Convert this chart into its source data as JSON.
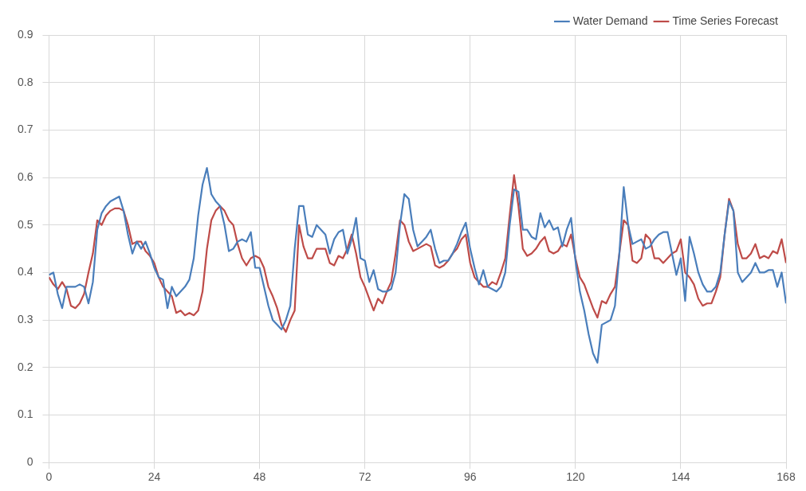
{
  "chart_data": {
    "type": "line",
    "x": [
      0,
      1,
      2,
      3,
      4,
      5,
      6,
      7,
      8,
      9,
      10,
      11,
      12,
      13,
      14,
      15,
      16,
      17,
      18,
      19,
      20,
      21,
      22,
      23,
      24,
      25,
      26,
      27,
      28,
      29,
      30,
      31,
      32,
      33,
      34,
      35,
      36,
      37,
      38,
      39,
      40,
      41,
      42,
      43,
      44,
      45,
      46,
      47,
      48,
      49,
      50,
      51,
      52,
      53,
      54,
      55,
      56,
      57,
      58,
      59,
      60,
      61,
      62,
      63,
      64,
      65,
      66,
      67,
      68,
      69,
      70,
      71,
      72,
      73,
      74,
      75,
      76,
      77,
      78,
      79,
      80,
      81,
      82,
      83,
      84,
      85,
      86,
      87,
      88,
      89,
      90,
      91,
      92,
      93,
      94,
      95,
      96,
      97,
      98,
      99,
      100,
      101,
      102,
      103,
      104,
      105,
      106,
      107,
      108,
      109,
      110,
      111,
      112,
      113,
      114,
      115,
      116,
      117,
      118,
      119,
      120,
      121,
      122,
      123,
      124,
      125,
      126,
      127,
      128,
      129,
      130,
      131,
      132,
      133,
      134,
      135,
      136,
      137,
      138,
      139,
      140,
      141,
      142,
      143,
      144,
      145,
      146,
      147,
      148,
      149,
      150,
      151,
      152,
      153,
      154,
      155,
      156,
      157,
      158,
      159,
      160,
      161,
      162,
      163,
      164,
      165,
      166,
      167,
      168
    ],
    "series": [
      {
        "name": "Water Demand",
        "color": "#4a7ebb",
        "values": [
          0.395,
          0.4,
          0.355,
          0.325,
          0.37,
          0.37,
          0.37,
          0.375,
          0.37,
          0.335,
          0.38,
          0.49,
          0.525,
          0.54,
          0.55,
          0.555,
          0.56,
          0.53,
          0.48,
          0.44,
          0.465,
          0.45,
          0.465,
          0.44,
          0.41,
          0.39,
          0.385,
          0.325,
          0.37,
          0.35,
          0.36,
          0.37,
          0.385,
          0.43,
          0.52,
          0.585,
          0.62,
          0.565,
          0.55,
          0.54,
          0.5,
          0.445,
          0.45,
          0.465,
          0.47,
          0.465,
          0.485,
          0.41,
          0.41,
          0.37,
          0.33,
          0.3,
          0.29,
          0.28,
          0.3,
          0.33,
          0.45,
          0.54,
          0.54,
          0.48,
          0.475,
          0.5,
          0.49,
          0.48,
          0.44,
          0.47,
          0.485,
          0.49,
          0.44,
          0.47,
          0.515,
          0.43,
          0.425,
          0.38,
          0.405,
          0.365,
          0.36,
          0.36,
          0.365,
          0.4,
          0.5,
          0.565,
          0.555,
          0.49,
          0.455,
          0.465,
          0.475,
          0.49,
          0.45,
          0.42,
          0.425,
          0.425,
          0.44,
          0.46,
          0.485,
          0.505,
          0.45,
          0.41,
          0.375,
          0.405,
          0.37,
          0.365,
          0.36,
          0.37,
          0.4,
          0.5,
          0.575,
          0.57,
          0.49,
          0.49,
          0.475,
          0.47,
          0.525,
          0.495,
          0.51,
          0.49,
          0.495,
          0.455,
          0.49,
          0.515,
          0.425,
          0.36,
          0.32,
          0.27,
          0.23,
          0.21,
          0.29,
          0.295,
          0.3,
          0.33,
          0.44,
          0.58,
          0.5,
          0.46,
          0.465,
          0.47,
          0.45,
          0.455,
          0.47,
          0.48,
          0.485,
          0.485,
          0.44,
          0.395,
          0.43,
          0.34,
          0.475,
          0.44,
          0.4,
          0.375,
          0.36,
          0.36,
          0.37,
          0.4,
          0.48,
          0.55,
          0.53,
          0.4,
          0.38,
          0.39,
          0.4,
          0.42,
          0.4,
          0.4,
          0.405,
          0.405,
          0.37,
          0.4,
          0.335
        ]
      },
      {
        "name": "Time Series Forecast",
        "color": "#be4b48",
        "values": [
          0.39,
          0.375,
          0.365,
          0.38,
          0.365,
          0.33,
          0.325,
          0.335,
          0.355,
          0.4,
          0.44,
          0.51,
          0.5,
          0.52,
          0.53,
          0.535,
          0.535,
          0.53,
          0.5,
          0.46,
          0.465,
          0.465,
          0.445,
          0.435,
          0.42,
          0.39,
          0.37,
          0.36,
          0.35,
          0.315,
          0.32,
          0.31,
          0.315,
          0.31,
          0.32,
          0.36,
          0.45,
          0.51,
          0.53,
          0.54,
          0.53,
          0.51,
          0.5,
          0.46,
          0.43,
          0.415,
          0.43,
          0.435,
          0.43,
          0.41,
          0.37,
          0.35,
          0.325,
          0.29,
          0.275,
          0.3,
          0.32,
          0.5,
          0.455,
          0.43,
          0.43,
          0.45,
          0.45,
          0.45,
          0.42,
          0.415,
          0.435,
          0.43,
          0.45,
          0.48,
          0.44,
          0.39,
          0.37,
          0.345,
          0.32,
          0.345,
          0.335,
          0.36,
          0.38,
          0.44,
          0.51,
          0.5,
          0.465,
          0.445,
          0.45,
          0.455,
          0.46,
          0.455,
          0.415,
          0.41,
          0.415,
          0.425,
          0.44,
          0.45,
          0.47,
          0.48,
          0.42,
          0.39,
          0.38,
          0.37,
          0.37,
          0.38,
          0.375,
          0.4,
          0.43,
          0.52,
          0.605,
          0.54,
          0.45,
          0.435,
          0.44,
          0.45,
          0.465,
          0.475,
          0.445,
          0.44,
          0.445,
          0.46,
          0.455,
          0.48,
          0.43,
          0.39,
          0.375,
          0.35,
          0.325,
          0.305,
          0.34,
          0.335,
          0.355,
          0.37,
          0.44,
          0.51,
          0.5,
          0.425,
          0.42,
          0.43,
          0.48,
          0.47,
          0.43,
          0.43,
          0.42,
          0.43,
          0.44,
          0.445,
          0.47,
          0.4,
          0.39,
          0.375,
          0.345,
          0.33,
          0.335,
          0.335,
          0.36,
          0.39,
          0.48,
          0.555,
          0.53,
          0.46,
          0.43,
          0.43,
          0.44,
          0.46,
          0.43,
          0.435,
          0.43,
          0.445,
          0.44,
          0.47,
          0.42
        ]
      }
    ],
    "xlim": [
      0,
      168
    ],
    "xticks": [
      0,
      24,
      48,
      72,
      96,
      120,
      144,
      168
    ],
    "ylim": [
      0,
      0.9
    ],
    "yticks": [
      0,
      0.1,
      0.2,
      0.3,
      0.4,
      0.5,
      0.6,
      0.7,
      0.8,
      0.9
    ],
    "grid": true,
    "legend": "top right",
    "marker": "none",
    "line_style": "solid"
  }
}
